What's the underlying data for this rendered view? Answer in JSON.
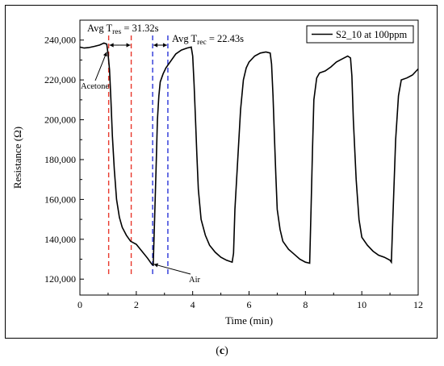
{
  "panel_label": "c",
  "chart_data": {
    "type": "line",
    "xlabel": "Time (min)",
    "ylabel": "Resistance (Ω)",
    "xlim": [
      0,
      12
    ],
    "ylim": [
      112000,
      250000
    ],
    "x_ticks": [
      0,
      2,
      4,
      6,
      8,
      10,
      12
    ],
    "y_ticks": [
      120000,
      140000,
      160000,
      180000,
      200000,
      220000,
      240000
    ],
    "y_tick_labels": [
      "120,000",
      "140,000",
      "160,000",
      "180,000",
      "200,000",
      "220,000",
      "240,000"
    ],
    "grid": false,
    "legend_position": "top-right",
    "series": [
      {
        "name": "S2_10 at 100ppm",
        "color": "#000000",
        "x": [
          0,
          0.15,
          0.3,
          0.5,
          0.7,
          0.85,
          0.95,
          1.0,
          1.05,
          1.1,
          1.15,
          1.22,
          1.3,
          1.4,
          1.5,
          1.65,
          1.8,
          2.0,
          2.2,
          2.4,
          2.55,
          2.6,
          2.65,
          2.7,
          2.75,
          2.8,
          2.85,
          2.95,
          3.05,
          3.2,
          3.4,
          3.6,
          3.8,
          3.95,
          4.0,
          4.05,
          4.1,
          4.15,
          4.2,
          4.3,
          4.45,
          4.6,
          4.8,
          5.0,
          5.2,
          5.4,
          5.45,
          5.5,
          5.6,
          5.7,
          5.8,
          5.9,
          6.0,
          6.2,
          6.4,
          6.6,
          6.75,
          6.8,
          6.85,
          6.9,
          6.95,
          7.0,
          7.1,
          7.2,
          7.4,
          7.6,
          7.8,
          8.0,
          8.15,
          8.2,
          8.25,
          8.3,
          8.4,
          8.5,
          8.6,
          8.7,
          8.9,
          9.1,
          9.3,
          9.5,
          9.6,
          9.65,
          9.7,
          9.8,
          9.9,
          10.0,
          10.2,
          10.4,
          10.6,
          10.8,
          11.0,
          11.05,
          11.1,
          11.2,
          11.3,
          11.4,
          11.6,
          11.8,
          12.0
        ],
        "values": [
          236500,
          236000,
          236200,
          236800,
          237500,
          238500,
          238000,
          233000,
          225000,
          210000,
          192000,
          175000,
          160000,
          151000,
          146000,
          142000,
          139000,
          137500,
          134000,
          130500,
          127500,
          127000,
          150000,
          175000,
          200000,
          212000,
          219000,
          223000,
          226000,
          229000,
          233000,
          235000,
          236000,
          236500,
          232000,
          218000,
          200000,
          182000,
          165000,
          150000,
          142000,
          137000,
          133500,
          131000,
          129500,
          128500,
          133000,
          155000,
          180000,
          205000,
          220000,
          226000,
          229000,
          232000,
          233500,
          234000,
          233500,
          228000,
          212000,
          192000,
          172000,
          155000,
          145000,
          139000,
          135000,
          132500,
          130000,
          128500,
          128000,
          155000,
          185000,
          210000,
          221000,
          223500,
          224000,
          224500,
          226500,
          229000,
          230500,
          232000,
          231000,
          222000,
          200000,
          170000,
          150000,
          141000,
          137000,
          134000,
          132000,
          131000,
          129500,
          128500,
          150000,
          190000,
          212000,
          220000,
          221000,
          222500,
          225500
        ]
      }
    ],
    "annotations": [
      {
        "text": "Acetone"
      },
      {
        "text": "Air"
      },
      {
        "label": "Avg T",
        "subscript": "res",
        "value": " = 31.32s"
      },
      {
        "label": "Avg T",
        "subscript": "rec",
        "value": " = 22.43s"
      }
    ],
    "reference_lines": [
      {
        "x": 1.02,
        "color": "#e8372c",
        "style": "dashed"
      },
      {
        "x": 1.82,
        "color": "#e8372c",
        "style": "dashed"
      },
      {
        "x": 2.58,
        "color": "#2a34d8",
        "style": "dashed"
      },
      {
        "x": 3.12,
        "color": "#2a34d8",
        "style": "dashed"
      }
    ]
  }
}
